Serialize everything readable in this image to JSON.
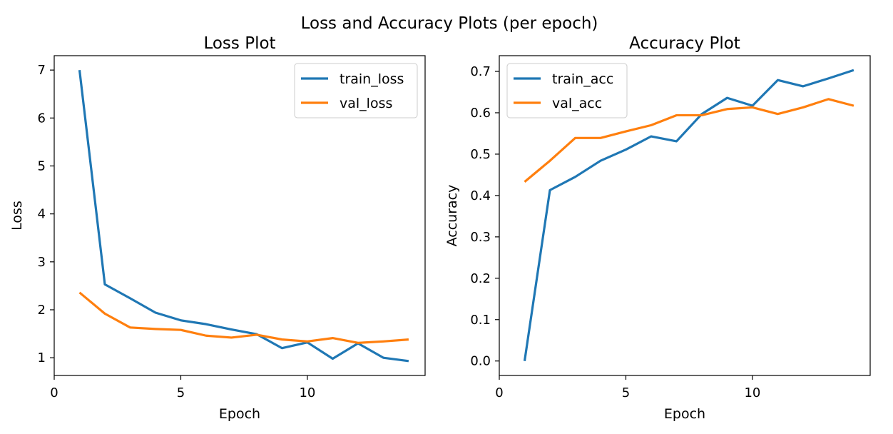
{
  "figure": {
    "suptitle": "Loss and Accuracy Plots (per epoch)"
  },
  "chart_data": [
    {
      "type": "line",
      "title": "Loss Plot",
      "xlabel": "Epoch",
      "ylabel": "Loss",
      "xlim": [
        0,
        14.65
      ],
      "ylim": [
        0.63,
        7.3
      ],
      "xticks": [
        0,
        5,
        10
      ],
      "yticks": [
        1,
        2,
        3,
        4,
        5,
        6,
        7
      ],
      "grid": false,
      "legend": "upper right",
      "x": [
        1,
        2,
        3,
        4,
        5,
        6,
        7,
        8,
        9,
        10,
        11,
        12,
        13,
        14
      ],
      "series": [
        {
          "name": "train_loss",
          "color": "#1f77b4",
          "values": [
            7.0,
            2.53,
            2.24,
            1.94,
            1.78,
            1.7,
            1.59,
            1.49,
            1.2,
            1.32,
            0.98,
            1.3,
            1.0,
            0.93
          ]
        },
        {
          "name": "val_loss",
          "color": "#ff7f0e",
          "values": [
            2.36,
            1.92,
            1.63,
            1.6,
            1.58,
            1.46,
            1.42,
            1.48,
            1.38,
            1.34,
            1.41,
            1.31,
            1.34,
            1.38
          ]
        }
      ]
    },
    {
      "type": "line",
      "title": "Accuracy Plot",
      "xlabel": "Epoch",
      "ylabel": "Accuracy",
      "xlim": [
        0,
        14.65
      ],
      "ylim": [
        -0.035,
        0.738
      ],
      "xticks": [
        0,
        5,
        10
      ],
      "yticks": [
        0.0,
        0.1,
        0.2,
        0.3,
        0.4,
        0.5,
        0.6,
        0.7
      ],
      "grid": false,
      "legend": "upper left",
      "x": [
        1,
        2,
        3,
        4,
        5,
        6,
        7,
        8,
        9,
        10,
        11,
        12,
        13,
        14
      ],
      "series": [
        {
          "name": "train_acc",
          "color": "#1f77b4",
          "values": [
            0.0,
            0.413,
            0.445,
            0.484,
            0.511,
            0.543,
            0.531,
            0.597,
            0.636,
            0.617,
            0.679,
            0.664,
            0.683,
            0.703
          ]
        },
        {
          "name": "val_acc",
          "color": "#ff7f0e",
          "values": [
            0.433,
            0.484,
            0.539,
            0.539,
            0.555,
            0.57,
            0.594,
            0.594,
            0.609,
            0.613,
            0.597,
            0.613,
            0.633,
            0.617
          ]
        }
      ]
    }
  ]
}
